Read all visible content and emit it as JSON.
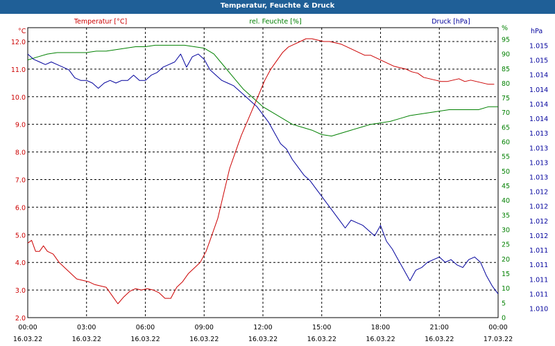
{
  "chart_data": {
    "type": "line",
    "title": "Temperatur, Feuchte & Druck",
    "colors": {
      "temperature": "#cc0000",
      "humidity": "#008000",
      "pressure": "#00009c",
      "title_bar": "#1f5f97",
      "grid": "#000000"
    },
    "grid": true,
    "x_axis": {
      "range_hours": [
        0,
        24
      ],
      "ticks": [
        {
          "h": 0,
          "time": "00:00",
          "date": "16.03.22"
        },
        {
          "h": 3,
          "time": "03:00",
          "date": "16.03.22"
        },
        {
          "h": 6,
          "time": "06:00",
          "date": "16.03.22"
        },
        {
          "h": 9,
          "time": "09:00",
          "date": "16.03.22"
        },
        {
          "h": 12,
          "time": "12:00",
          "date": "16.03.22"
        },
        {
          "h": 15,
          "time": "15:00",
          "date": "16.03.22"
        },
        {
          "h": 18,
          "time": "18:00",
          "date": "16.03.22"
        },
        {
          "h": 21,
          "time": "21:00",
          "date": "16.03.22"
        },
        {
          "h": 24,
          "time": "00:00",
          "date": "17.03.22"
        }
      ]
    },
    "axes": {
      "temperature": {
        "unit": "°C",
        "label": "Temperatur [°C]",
        "ylim": [
          2.0,
          12.5
        ],
        "ticks": [
          "2.0",
          "3.0",
          "4.0",
          "5.0",
          "6.0",
          "7.0",
          "8.0",
          "9.0",
          "10.0",
          "11.0",
          "12.0"
        ]
      },
      "humidity": {
        "unit": "%",
        "label": "rel. Feuchte [%]",
        "ylim": [
          0,
          99
        ],
        "ticks": [
          "0",
          "5",
          "10",
          "15",
          "20",
          "25",
          "30",
          "35",
          "40",
          "45",
          "50",
          "55",
          "60",
          "65",
          "70",
          "75",
          "80",
          "85",
          "90",
          "95",
          "%"
        ]
      },
      "pressure": {
        "unit": "hPa",
        "label": "Druck [hPa]",
        "ylim": [
          1010.0,
          1015.5
        ],
        "ticks": [
          "1.010",
          "1.011",
          "1.011",
          "1.011",
          "1.011",
          "1.012",
          "1.012",
          "1.012",
          "1.012",
          "1.013",
          "1.013",
          "1.013",
          "1.013",
          "1.014",
          "1.014",
          "1.014",
          "1.014",
          "1.015",
          "1.015"
        ]
      }
    },
    "series": [
      {
        "name": "Temperatur [°C]",
        "axis": "temperature",
        "x": [
          0,
          0.2,
          0.4,
          0.6,
          0.8,
          1.0,
          1.3,
          1.6,
          1.9,
          2.2,
          2.5,
          2.8,
          3.1,
          3.4,
          3.7,
          4.0,
          4.3,
          4.6,
          4.9,
          5.2,
          5.5,
          5.8,
          6.1,
          6.4,
          6.7,
          7.0,
          7.3,
          7.6,
          7.9,
          8.2,
          8.5,
          8.8,
          9.1,
          9.4,
          9.7,
          10.0,
          10.3,
          10.6,
          10.9,
          11.2,
          11.5,
          11.8,
          12.1,
          12.4,
          12.7,
          13.0,
          13.3,
          13.6,
          13.9,
          14.2,
          14.5,
          14.8,
          15.1,
          15.4,
          15.7,
          16.0,
          16.3,
          16.6,
          16.9,
          17.2,
          17.5,
          17.8,
          18.1,
          18.4,
          18.7,
          19.0,
          19.3,
          19.6,
          19.9,
          20.2,
          20.5,
          20.8,
          21.1,
          21.4,
          21.7,
          22.0,
          22.3,
          22.6,
          22.9,
          23.2,
          23.5,
          23.8
        ],
        "values": [
          4.7,
          4.8,
          4.4,
          4.4,
          4.6,
          4.4,
          4.3,
          4.0,
          3.8,
          3.6,
          3.4,
          3.35,
          3.3,
          3.2,
          3.15,
          3.1,
          2.8,
          2.5,
          2.75,
          2.95,
          3.05,
          3.0,
          3.05,
          3.0,
          2.9,
          2.7,
          2.7,
          3.1,
          3.3,
          3.6,
          3.8,
          4.0,
          4.4,
          5.0,
          5.6,
          6.5,
          7.4,
          8.0,
          8.6,
          9.1,
          9.6,
          10.1,
          10.6,
          11.0,
          11.3,
          11.6,
          11.8,
          11.9,
          12.0,
          12.1,
          12.1,
          12.05,
          12.0,
          12.0,
          11.95,
          11.9,
          11.8,
          11.7,
          11.6,
          11.5,
          11.5,
          11.4,
          11.3,
          11.2,
          11.1,
          11.05,
          11.0,
          10.9,
          10.85,
          10.7,
          10.65,
          10.6,
          10.55,
          10.55,
          10.6,
          10.65,
          10.55,
          10.6,
          10.55,
          10.5,
          10.45,
          10.45
        ]
      },
      {
        "name": "rel. Feuchte [%]",
        "axis": "humidity",
        "x": [
          0,
          0.5,
          1.0,
          1.5,
          2.0,
          2.5,
          3.0,
          3.5,
          4.0,
          4.5,
          5.0,
          5.5,
          6.0,
          6.5,
          7.0,
          7.5,
          8.0,
          8.5,
          9.0,
          9.5,
          10.0,
          10.5,
          11.0,
          11.5,
          12.0,
          12.5,
          13.0,
          13.5,
          14.0,
          14.5,
          15.0,
          15.5,
          16.0,
          16.5,
          17.0,
          17.5,
          18.0,
          18.5,
          19.0,
          19.5,
          20.0,
          20.5,
          21.0,
          21.5,
          22.0,
          22.5,
          23.0,
          23.5,
          24.0
        ],
        "values": [
          88,
          89,
          90,
          90.5,
          90.5,
          90.5,
          90.5,
          91,
          91,
          91.5,
          92,
          92.5,
          92.5,
          93,
          93,
          93,
          93,
          92.5,
          92,
          90,
          86,
          82,
          78,
          75,
          72,
          70,
          68,
          66,
          65,
          64,
          62.5,
          62,
          63,
          64,
          65,
          66,
          66.5,
          67,
          68,
          69,
          69.5,
          70,
          70.5,
          71,
          71,
          71,
          71,
          72,
          72
        ]
      },
      {
        "name": "Druck [hPa]",
        "axis": "pressure",
        "x": [
          0,
          0.3,
          0.6,
          0.9,
          1.2,
          1.5,
          1.8,
          2.1,
          2.4,
          2.7,
          3.0,
          3.3,
          3.6,
          3.9,
          4.2,
          4.5,
          4.8,
          5.1,
          5.4,
          5.7,
          6.0,
          6.3,
          6.6,
          6.9,
          7.2,
          7.5,
          7.8,
          8.1,
          8.4,
          8.7,
          9.0,
          9.3,
          9.6,
          9.9,
          10.2,
          10.5,
          10.8,
          11.1,
          11.4,
          11.7,
          12.0,
          12.3,
          12.6,
          12.9,
          13.2,
          13.5,
          13.8,
          14.1,
          14.4,
          14.7,
          15.0,
          15.3,
          15.6,
          15.9,
          16.2,
          16.5,
          16.8,
          17.1,
          17.4,
          17.7,
          18.0,
          18.3,
          18.6,
          18.9,
          19.2,
          19.5,
          19.8,
          20.1,
          20.4,
          20.7,
          21.0,
          21.3,
          21.6,
          21.9,
          22.2,
          22.5,
          22.8,
          23.1,
          23.4,
          23.7,
          24.0
        ],
        "values": [
          1015.0,
          1014.9,
          1014.85,
          1014.8,
          1014.85,
          1014.8,
          1014.75,
          1014.7,
          1014.55,
          1014.5,
          1014.5,
          1014.45,
          1014.35,
          1014.45,
          1014.5,
          1014.45,
          1014.5,
          1014.5,
          1014.6,
          1014.5,
          1014.5,
          1014.6,
          1014.65,
          1014.75,
          1014.8,
          1014.85,
          1015.0,
          1014.75,
          1014.95,
          1015.0,
          1014.9,
          1014.7,
          1014.6,
          1014.5,
          1014.45,
          1014.4,
          1014.3,
          1014.2,
          1014.1,
          1014.0,
          1013.85,
          1013.7,
          1013.5,
          1013.3,
          1013.2,
          1013.0,
          1012.85,
          1012.7,
          1012.6,
          1012.45,
          1012.3,
          1012.15,
          1012.0,
          1011.85,
          1011.7,
          1011.85,
          1011.8,
          1011.75,
          1011.65,
          1011.55,
          1011.75,
          1011.45,
          1011.3,
          1011.1,
          1010.9,
          1010.7,
          1010.9,
          1010.95,
          1011.05,
          1011.1,
          1011.15,
          1011.05,
          1011.1,
          1011.0,
          1010.95,
          1011.1,
          1011.15,
          1011.05,
          1010.8,
          1010.6,
          1010.45
        ]
      }
    ]
  }
}
